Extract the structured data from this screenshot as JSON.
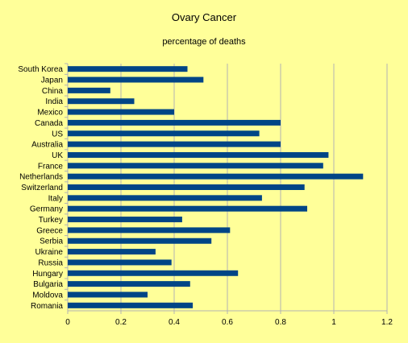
{
  "chart_data": {
    "type": "bar",
    "orientation": "horizontal",
    "title": "Ovary Cancer",
    "subtitle": "percentage of deaths",
    "xlabel": "",
    "ylabel": "",
    "categories": [
      "South Korea",
      "Japan",
      "China",
      "India",
      "Mexico",
      "Canada",
      "US",
      "Australia",
      "UK",
      "France",
      "Netherlands",
      "Switzerland",
      "Italy",
      "Germany",
      "Turkey",
      "Greece",
      "Serbia",
      "Ukraine",
      "Russia",
      "Hungary",
      "Bulgaria",
      "Moldova",
      "Romania"
    ],
    "values": [
      0.45,
      0.51,
      0.16,
      0.25,
      0.4,
      0.8,
      0.72,
      0.8,
      0.98,
      0.96,
      1.11,
      0.89,
      0.73,
      0.9,
      0.43,
      0.61,
      0.54,
      0.33,
      0.39,
      0.64,
      0.46,
      0.3,
      0.47
    ],
    "xlim": [
      0,
      1.2
    ],
    "xticks": [
      "0",
      "0.2",
      "0.4",
      "0.6",
      "0.8",
      "1",
      "1.2"
    ],
    "grid": "vertical",
    "legend": "none",
    "colors": {
      "background": "#ffff99",
      "bar": "#004586",
      "grid": "#b3b3b3",
      "axis": "#b3b3b3"
    }
  }
}
